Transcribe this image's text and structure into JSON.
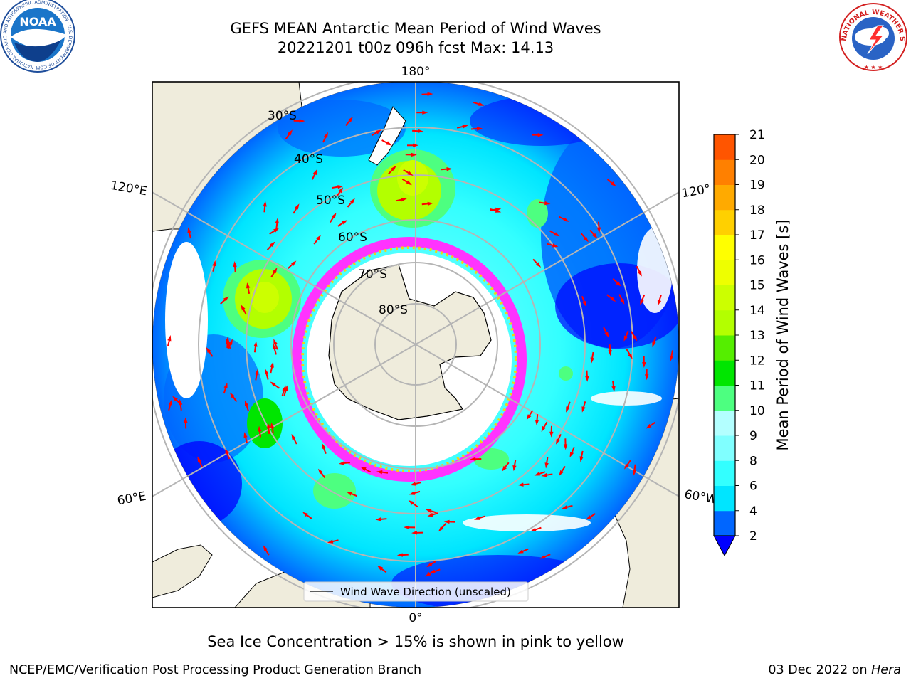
{
  "header": {
    "title_line1": "GEFS MEAN Antarctic Mean Period of Wind Waves",
    "title_line2": "20221201 t00z 096h fcst   Max: 14.13"
  },
  "logos": {
    "left_org": "NOAA",
    "left_ring_text": "NATIONAL OCEANIC AND ATMOSPHERIC ADMINISTRATION · U.S. DEPARTMENT OF COMMERCE",
    "right_ring_text": "NATIONAL WEATHER SERVICE"
  },
  "map": {
    "projection": "south polar stereographic",
    "lon_labels": {
      "top": "180°",
      "bottom": "0°",
      "left_upper": "120°E",
      "left_lower": "60°E",
      "right_upper": "120°",
      "right_lower": "60°W"
    },
    "lat_labels": [
      "30°S",
      "40°S",
      "50°S",
      "60°S",
      "70°S",
      "80°S"
    ],
    "legend_label": "Wind Wave Direction (unscaled)",
    "field_max": 14.13
  },
  "colorbar": {
    "label": "Mean Period of Wind Waves [s]",
    "ticks": [
      "2",
      "4",
      "6",
      "8",
      "9",
      "10",
      "11",
      "12",
      "13",
      "14",
      "15",
      "16",
      "17",
      "18",
      "19",
      "20",
      "21"
    ],
    "colors": [
      "#0066ff",
      "#00e5ff",
      "#33ffff",
      "#80ffff",
      "#b3ffff",
      "#4dff80",
      "#00e600",
      "#55ee00",
      "#b3ff00",
      "#ccff00",
      "#eeff00",
      "#ffff00",
      "#ffd000",
      "#ffaa00",
      "#ff8000",
      "#ff5500",
      "#ff2a00",
      "#ff0000"
    ],
    "under_color": "#0000ff"
  },
  "notes": {
    "ice": "Sea Ice Concentration > 15% is shown in pink to yellow",
    "footer_left": "NCEP/EMC/Verification Post Processing Product Generation Branch",
    "footer_right_date": "03 Dec 2022 on ",
    "footer_right_host": "Hera"
  },
  "style": {
    "land": "#efecdc",
    "grid": "#b5b5b5",
    "arrow": "#ff0000",
    "ice_edge": "#ff33ff"
  }
}
